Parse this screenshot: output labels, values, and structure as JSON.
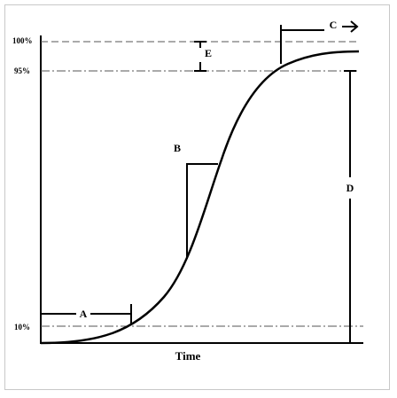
{
  "diagram": {
    "x_axis_label": "Time",
    "levels": [
      "100%",
      "95%",
      "10%"
    ],
    "annotations": [
      "A",
      "B",
      "C",
      "D",
      "E"
    ]
  }
}
